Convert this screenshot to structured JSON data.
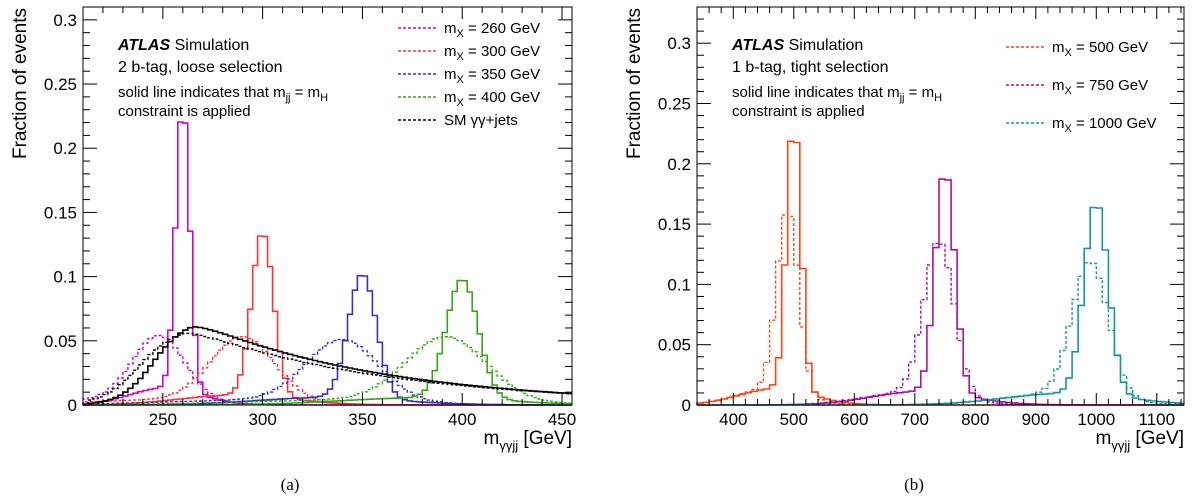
{
  "chart_data": [
    {
      "type": "line",
      "panel_label": "(a)",
      "atlas_label": "ATLAS",
      "atlas_suffix": "Simulation",
      "selection_text": "2 b-tag, loose selection",
      "note_line1": "solid line indicates that m",
      "note_sub1": "jj",
      "note_eq": " = m",
      "note_sub2": "H",
      "note_line2": "constraint is applied",
      "ylabel": "Fraction of events",
      "xlabel_main": "m",
      "xlabel_sub": "γγjj",
      "xlabel_unit": " [GeV]",
      "xlim": [
        210,
        455
      ],
      "ylim": [
        0,
        0.31
      ],
      "xticks": [
        250,
        300,
        350,
        400,
        450
      ],
      "yticks": [
        0,
        0.05,
        0.1,
        0.15,
        0.2,
        0.25,
        0.3
      ],
      "ytick_labels": [
        "0",
        "0.05",
        "0.1",
        "0.15",
        "0.2",
        "0.25",
        "0.3"
      ],
      "series": [
        {
          "label_main": "m",
          "label_sub": "X",
          "label_rest": " = 260 GeV",
          "color": "#d000d0",
          "mass": 260,
          "peak": 0.222,
          "sigma": 3.5,
          "dashed_peak": 0.051,
          "dashed_mean": 248,
          "dashed_sigma": 13
        },
        {
          "label_main": "m",
          "label_sub": "X",
          "label_rest": " = 300 GeV",
          "color": "#ff3333",
          "mass": 300,
          "peak": 0.128,
          "sigma": 5.5,
          "dashed_peak": 0.05,
          "dashed_mean": 290,
          "dashed_sigma": 16
        },
        {
          "label_main": "m",
          "label_sub": "X",
          "label_rest": " = 350 GeV",
          "color": "#3333bb",
          "mass": 350,
          "peak": 0.097,
          "sigma": 7.0,
          "dashed_peak": 0.048,
          "dashed_mean": 340,
          "dashed_sigma": 18
        },
        {
          "label_main": "m",
          "label_sub": "X",
          "label_rest": " = 400 GeV",
          "color": "#33aa11",
          "mass": 400,
          "peak": 0.093,
          "sigma": 8.0,
          "dashed_peak": 0.05,
          "dashed_mean": 392,
          "dashed_sigma": 20
        },
        {
          "label_main": "SM γγ+jets",
          "label_sub": "",
          "label_rest": "",
          "color": "#000000",
          "mass": 270,
          "peak": 0.058,
          "sigma": 0,
          "dashed_peak": 0.054
        }
      ]
    },
    {
      "type": "line",
      "panel_label": "(b)",
      "atlas_label": "ATLAS",
      "atlas_suffix": "Simulation",
      "selection_text": "1 b-tag, tight selection",
      "note_line1": "solid line indicates that m",
      "note_sub1": "jj",
      "note_eq": " = m",
      "note_sub2": "H",
      "note_line2": "constraint is applied",
      "ylabel": "Fraction of events",
      "xlabel_main": "m",
      "xlabel_sub": "γγjj",
      "xlabel_unit": " [GeV]",
      "xlim": [
        340,
        1145
      ],
      "ylim": [
        0,
        0.33
      ],
      "xticks": [
        400,
        500,
        600,
        700,
        800,
        900,
        1000,
        1100
      ],
      "yticks": [
        0,
        0.05,
        0.1,
        0.15,
        0.2,
        0.25,
        0.3
      ],
      "ytick_labels": [
        "0",
        "0.05",
        "0.1",
        "0.15",
        "0.2",
        "0.25",
        "0.3"
      ],
      "series": [
        {
          "label_main": "m",
          "label_sub": "X",
          "label_rest": " = 500 GeV",
          "color": "#ff4411",
          "mass": 500,
          "peak": 0.225,
          "sigma": 12,
          "dashed_peak": 0.153,
          "dashed_mean": 490,
          "dashed_sigma": 18
        },
        {
          "label_main": "m",
          "label_sub": "X",
          "label_rest": " = 750 GeV",
          "color": "#aa11aa",
          "mass": 750,
          "peak": 0.186,
          "sigma": 16,
          "dashed_peak": 0.128,
          "dashed_mean": 740,
          "dashed_sigma": 25
        },
        {
          "label_main": "m",
          "label_sub": "X",
          "label_rest": " = 1000 GeV",
          "color": "#119999",
          "mass": 1000,
          "peak": 0.16,
          "sigma": 20,
          "dashed_peak": 0.112,
          "dashed_mean": 990,
          "dashed_sigma": 30
        }
      ]
    }
  ]
}
